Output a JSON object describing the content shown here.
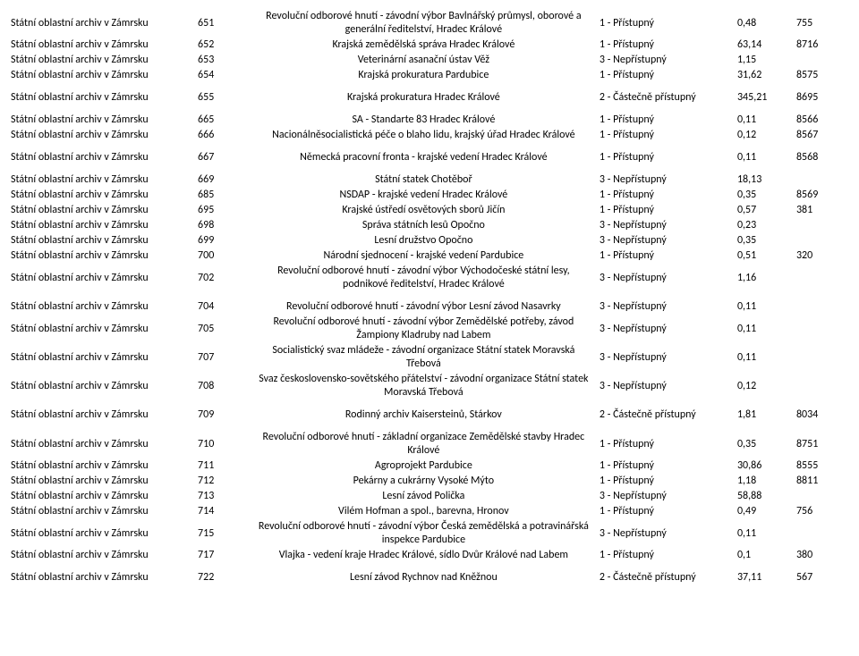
{
  "archive_label": "Státní oblastní archiv v Zámrsku",
  "rows": [
    {
      "num": "651",
      "title": "Revoluční odborové hnutí - závodní výbor Bavlnářský průmysl, oborové a generální ředitelství, Hradec Králové",
      "access": "1 - Přístupný",
      "val": "0,48",
      "code": "755"
    },
    {
      "num": "652",
      "title": "Krajská zemědělská správa Hradec Králové",
      "access": "1 - Přístupný",
      "val": "63,14",
      "code": "8716"
    },
    {
      "num": "653",
      "title": "Veterinární asanační ústav Věž",
      "access": "3 - Nepřístupný",
      "val": "1,15",
      "code": ""
    },
    {
      "num": "654",
      "title": "Krajská prokuratura Pardubice",
      "access": "1 - Přístupný",
      "val": "31,62",
      "code": "8575"
    },
    {
      "num": "655",
      "title": "Krajská prokuratura Hradec Králové",
      "access": "2 - Částečně přístupný",
      "val": "345,21",
      "code": "8695",
      "gap": true
    },
    {
      "num": "665",
      "title": "SA - Standarte 83 Hradec Králové",
      "access": "1 - Přístupný",
      "val": "0,11",
      "code": "8566",
      "gap": true
    },
    {
      "num": "666",
      "title": "Nacionálněsocialistická péče o blaho lidu, krajský úřad Hradec Králové",
      "access": "1 - Přístupný",
      "val": "0,12",
      "code": "8567"
    },
    {
      "num": "667",
      "title": "Německá pracovní fronta - krajské vedení Hradec Králové",
      "access": "1 - Přístupný",
      "val": "0,11",
      "code": "8568",
      "gap": true
    },
    {
      "num": "669",
      "title": "Státní statek Chotěboř",
      "access": "3 - Nepřístupný",
      "val": "18,13",
      "code": "",
      "gap": true
    },
    {
      "num": "685",
      "title": "NSDAP - krajské vedení Hradec Králové",
      "access": "1 - Přístupný",
      "val": "0,35",
      "code": "8569"
    },
    {
      "num": "695",
      "title": "Krajské ústředí osvětových sborů Jičín",
      "access": "1 - Přístupný",
      "val": "0,57",
      "code": "381"
    },
    {
      "num": "698",
      "title": "Správa státních lesů Opočno",
      "access": "3 - Nepřístupný",
      "val": "0,23",
      "code": ""
    },
    {
      "num": "699",
      "title": "Lesní družstvo Opočno",
      "access": "3 - Nepřístupný",
      "val": "0,35",
      "code": ""
    },
    {
      "num": "700",
      "title": "Národní sjednocení - krajské vedení Pardubice",
      "access": "1 - Přístupný",
      "val": "0,51",
      "code": "320"
    },
    {
      "num": "702",
      "title": "Revoluční odborové hnutí - závodní výbor Východočeské státní lesy, podnikové ředitelství, Hradec Králové",
      "access": "3 - Nepřístupný",
      "val": "1,16",
      "code": ""
    },
    {
      "num": "704",
      "title": "Revoluční odborové hnutí - závodní výbor Lesní závod Nasavrky",
      "access": "3 - Nepřístupný",
      "val": "0,11",
      "code": "",
      "gap": true
    },
    {
      "num": "705",
      "title": "Revoluční odborové hnutí - závodní výbor Zemědělské potřeby, závod Žampiony Kladruby nad Labem",
      "access": "3 - Nepřístupný",
      "val": "0,11",
      "code": ""
    },
    {
      "num": "707",
      "title": "Socialistický svaz mládeže - závodní organizace Státní statek Moravská Třebová",
      "access": "3 - Nepřístupný",
      "val": "0,11",
      "code": ""
    },
    {
      "num": "708",
      "title": "Svaz československo-sovětského přátelství - závodní organizace Státní statek Moravská Třebová",
      "access": "3 - Nepřístupný",
      "val": "0,12",
      "code": ""
    },
    {
      "num": "709",
      "title": "Rodinný archiv Kaisersteinů, Stárkov",
      "access": "2 - Částečně přístupný",
      "val": "1,81",
      "code": "8034",
      "gap": true
    },
    {
      "num": "710",
      "title": "Revoluční odborové hnutí - základní organizace Zemědělské stavby Hradec Králové",
      "access": "1 - Přístupný",
      "val": "0,35",
      "code": "8751",
      "gap": true
    },
    {
      "num": "711",
      "title": "Agroprojekt Pardubice",
      "access": "1 - Přístupný",
      "val": "30,86",
      "code": "8555"
    },
    {
      "num": "712",
      "title": "Pekárny a cukrárny Vysoké Mýto",
      "access": "1 - Přístupný",
      "val": "1,18",
      "code": "8811"
    },
    {
      "num": "713",
      "title": "Lesní závod Polička",
      "access": "3 - Nepřístupný",
      "val": "58,88",
      "code": ""
    },
    {
      "num": "714",
      "title": "Vilém Hofman a spol., barevna, Hronov",
      "access": "1 - Přístupný",
      "val": "0,49",
      "code": "756"
    },
    {
      "num": "715",
      "title": "Revoluční odborové hnutí - závodní výbor Česká zemědělská a potravinářská inspekce Pardubice",
      "access": "3 - Nepřístupný",
      "val": "0,11",
      "code": ""
    },
    {
      "num": "717",
      "title": "Vlajka - vedení kraje Hradec Králové, sídlo Dvůr Králové nad Labem",
      "access": "1 - Přístupný",
      "val": "0,1",
      "code": "380"
    },
    {
      "num": "722",
      "title": "Lesní závod Rychnov nad Kněžnou",
      "access": "2 - Částečně přístupný",
      "val": "37,11",
      "code": "567",
      "gap": true
    }
  ]
}
